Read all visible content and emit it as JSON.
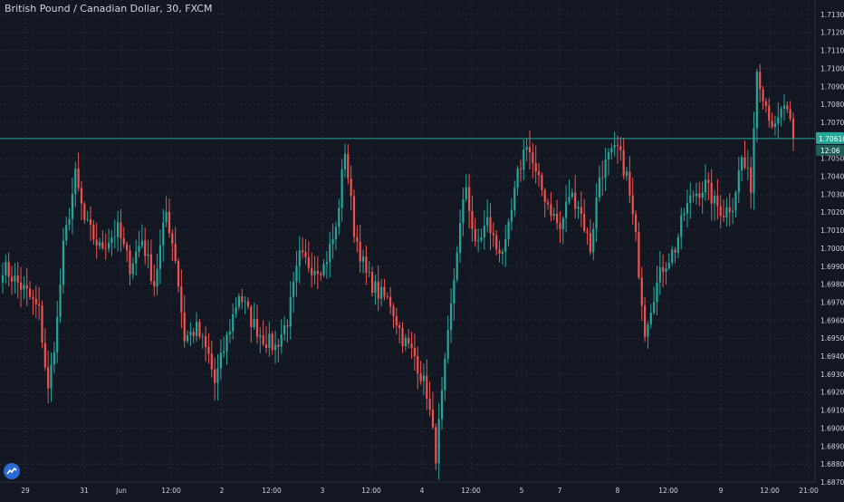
{
  "header": {
    "symbol_title": "British Pound / Canadian Dollar, 30, FXCM"
  },
  "price_badge": {
    "price": "1.70610",
    "countdown": "12:06"
  },
  "colors": {
    "background": "#131722",
    "grid": "#363c4e",
    "up_candle": "#26a69a",
    "down_candle": "#ef5350",
    "price_line": "#26a69a",
    "axis_text": "#d1d4dc"
  },
  "icons": {
    "logo": "tradingview-logo-icon"
  },
  "chart_data": {
    "type": "candlestick",
    "title": "British Pound / Canadian Dollar, 30, FXCM",
    "ylim": [
      1.687,
      1.7138
    ],
    "y_ticks": [
      "1.71300",
      "1.71200",
      "1.71100",
      "1.71000",
      "1.70900",
      "1.70800",
      "1.70700",
      "1.70500",
      "1.70400",
      "1.70300",
      "1.70200",
      "1.70100",
      "1.70000",
      "1.69900",
      "1.69800",
      "1.69700",
      "1.69600",
      "1.69500",
      "1.69400",
      "1.69300",
      "1.69200",
      "1.69100",
      "1.69000",
      "1.68900",
      "1.68800",
      "1.68700"
    ],
    "x_ticks": [
      "29",
      "31",
      "Jun",
      "12:00",
      "2",
      "12:00",
      "3",
      "12:00",
      "4",
      "12:00",
      "5",
      "7",
      "8",
      "12:00",
      "9",
      "12:00",
      "21:00"
    ],
    "grid": true,
    "current_price": 1.7061,
    "close_anchors": [
      [
        0,
        1.699
      ],
      [
        8,
        1.6975
      ],
      [
        12,
        1.6965
      ],
      [
        15,
        1.692
      ],
      [
        18,
        1.696
      ],
      [
        20,
        1.7
      ],
      [
        24,
        1.704
      ],
      [
        27,
        1.7015
      ],
      [
        32,
        1.7
      ],
      [
        38,
        1.701
      ],
      [
        42,
        1.699
      ],
      [
        46,
        1.7005
      ],
      [
        50,
        1.698
      ],
      [
        54,
        1.702
      ],
      [
        57,
        1.6995
      ],
      [
        60,
        1.695
      ],
      [
        64,
        1.6955
      ],
      [
        68,
        1.694
      ],
      [
        70,
        1.6925
      ],
      [
        74,
        1.695
      ],
      [
        78,
        1.6975
      ],
      [
        82,
        1.696
      ],
      [
        86,
        1.695
      ],
      [
        90,
        1.6945
      ],
      [
        94,
        1.696
      ],
      [
        98,
        1.6995
      ],
      [
        102,
        1.699
      ],
      [
        106,
        1.699
      ],
      [
        110,
        1.701
      ],
      [
        113,
        1.7055
      ],
      [
        116,
        1.701
      ],
      [
        120,
        1.6985
      ],
      [
        124,
        1.6975
      ],
      [
        128,
        1.697
      ],
      [
        132,
        1.695
      ],
      [
        136,
        1.694
      ],
      [
        140,
        1.692
      ],
      [
        143,
        1.6885
      ],
      [
        147,
        1.695
      ],
      [
        150,
        1.7
      ],
      [
        153,
        1.7035
      ],
      [
        156,
        1.7
      ],
      [
        160,
        1.7015
      ],
      [
        163,
        1.7
      ],
      [
        166,
        1.7
      ],
      [
        170,
        1.704
      ],
      [
        173,
        1.706
      ],
      [
        176,
        1.704
      ],
      [
        180,
        1.7025
      ],
      [
        184,
        1.701
      ],
      [
        187,
        1.703
      ],
      [
        190,
        1.7025
      ],
      [
        194,
        1.7
      ],
      [
        197,
        1.704
      ],
      [
        200,
        1.705
      ],
      [
        203,
        1.7055
      ],
      [
        206,
        1.704
      ],
      [
        209,
        1.7005
      ],
      [
        212,
        1.6955
      ],
      [
        215,
        1.6975
      ],
      [
        218,
        1.699
      ],
      [
        222,
        1.7
      ],
      [
        225,
        1.702
      ],
      [
        228,
        1.703
      ],
      [
        232,
        1.7035
      ],
      [
        235,
        1.7025
      ],
      [
        238,
        1.702
      ],
      [
        241,
        1.7025
      ],
      [
        244,
        1.705
      ],
      [
        247,
        1.7035
      ],
      [
        249,
        1.71
      ],
      [
        252,
        1.708
      ],
      [
        255,
        1.7065
      ],
      [
        258,
        1.708
      ],
      [
        261,
        1.7061
      ]
    ]
  }
}
